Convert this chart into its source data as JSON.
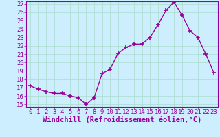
{
  "x": [
    0,
    1,
    2,
    3,
    4,
    5,
    6,
    7,
    8,
    9,
    10,
    11,
    12,
    13,
    14,
    15,
    16,
    17,
    18,
    19,
    20,
    21,
    22,
    23
  ],
  "y": [
    17.2,
    16.8,
    16.5,
    16.3,
    16.3,
    16.0,
    15.8,
    15.0,
    15.8,
    18.7,
    19.2,
    21.1,
    21.8,
    22.2,
    22.2,
    23.0,
    24.5,
    26.2,
    27.2,
    25.7,
    23.8,
    23.0,
    21.0,
    18.8
  ],
  "line_color": "#990099",
  "marker": "+",
  "marker_size": 4,
  "bg_color": "#cceeff",
  "grid_color": "#aaddcc",
  "xlabel": "Windchill (Refroidissement éolien,°C)",
  "tick_color": "#990099",
  "ylim": [
    15,
    27
  ],
  "xlim": [
    -0.5,
    23.5
  ],
  "yticks": [
    15,
    16,
    17,
    18,
    19,
    20,
    21,
    22,
    23,
    24,
    25,
    26,
    27
  ],
  "xticks": [
    0,
    1,
    2,
    3,
    4,
    5,
    6,
    7,
    8,
    9,
    10,
    11,
    12,
    13,
    14,
    15,
    16,
    17,
    18,
    19,
    20,
    21,
    22,
    23
  ],
  "font_size": 6.5,
  "xlabel_font_size": 7.5,
  "line_width": 1.0,
  "marker_edge_width": 1.2
}
